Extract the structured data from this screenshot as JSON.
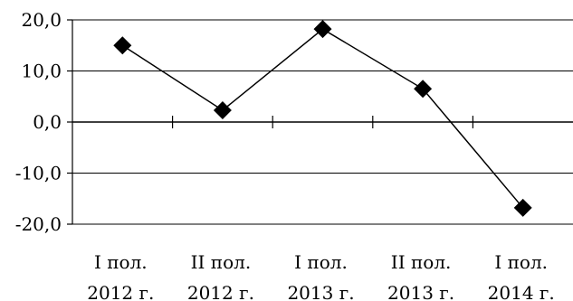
{
  "chart_data": {
    "type": "line",
    "title": "",
    "xlabel": "",
    "ylabel": "",
    "categories": [
      [
        "I пол.",
        "2012 г."
      ],
      [
        "II пол.",
        "2012 г."
      ],
      [
        "I пол.",
        "2013 г."
      ],
      [
        "II пол.",
        "2013 г."
      ],
      [
        "I пол.",
        "2014 г."
      ]
    ],
    "series": [
      {
        "values": [
          15.0,
          2.3,
          18.2,
          6.5,
          -16.8
        ]
      }
    ],
    "ylim": [
      -20,
      20
    ],
    "yticks": [
      20,
      10,
      0,
      -10,
      -20
    ],
    "ytick_labels": [
      "20,0",
      "10,0",
      "0,0",
      "-10,0",
      "-20,0"
    ],
    "grid": true,
    "legend": "none",
    "colors": {
      "line": "#000000",
      "marker": "#000000",
      "grid": "#000000"
    },
    "marker": "diamond-icon"
  }
}
